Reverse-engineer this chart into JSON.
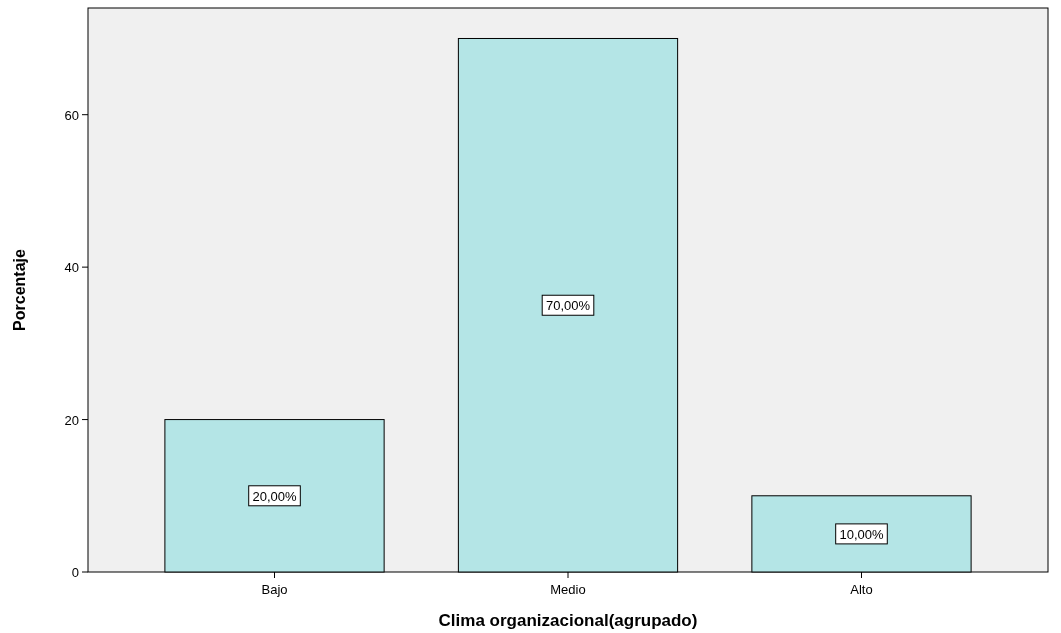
{
  "chart_data": {
    "type": "bar",
    "xlabel": "Clima organizacional(agrupado)",
    "ylabel": "Porcentaje",
    "categories": [
      "Bajo",
      "Medio",
      "Alto"
    ],
    "values": [
      20,
      70,
      10
    ],
    "value_labels": [
      "20,00%",
      "70,00%",
      "10,00%"
    ],
    "color": "#b4e5e6",
    "ylim": [
      0,
      74
    ],
    "yticks": [
      0,
      20,
      40,
      60
    ],
    "grid": false
  }
}
